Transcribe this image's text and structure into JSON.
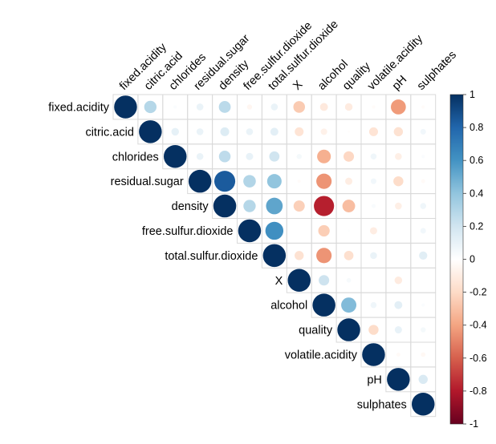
{
  "chart_data": {
    "type": "heatmap",
    "subtype": "correlation-upper-circles",
    "variables": [
      "fixed.acidity",
      "citric.acid",
      "chlorides",
      "residual.sugar",
      "density",
      "free.sulfur.dioxide",
      "total.sulfur.dioxide",
      "X",
      "alcohol",
      "quality",
      "volatile.acidity",
      "pH",
      "sulphates"
    ],
    "matrix": [
      [
        1,
        0.29,
        0.02,
        0.09,
        0.27,
        -0.05,
        0.09,
        -0.26,
        -0.12,
        -0.11,
        -0.02,
        -0.43,
        -0.02
      ],
      [
        null,
        1,
        0.11,
        0.09,
        0.15,
        0.09,
        0.12,
        -0.15,
        -0.08,
        -0.01,
        -0.15,
        -0.16,
        0.06
      ],
      [
        null,
        null,
        1,
        0.09,
        0.26,
        0.1,
        0.2,
        0.05,
        -0.36,
        -0.21,
        0.07,
        -0.09,
        0.02
      ],
      [
        null,
        null,
        null,
        1,
        0.84,
        0.3,
        0.4,
        -0.02,
        -0.45,
        -0.1,
        0.06,
        -0.19,
        -0.03
      ],
      [
        null,
        null,
        null,
        null,
        1,
        0.29,
        0.53,
        -0.24,
        -0.78,
        -0.31,
        0.03,
        -0.09,
        0.07
      ],
      [
        null,
        null,
        null,
        null,
        null,
        1,
        0.62,
        0.0,
        -0.25,
        0.01,
        -0.1,
        0.0,
        0.06
      ],
      [
        null,
        null,
        null,
        null,
        null,
        null,
        1,
        -0.16,
        -0.45,
        -0.17,
        0.09,
        0.0,
        0.13
      ],
      [
        null,
        null,
        null,
        null,
        null,
        null,
        null,
        1,
        0.21,
        0.04,
        0.0,
        -0.11,
        0.0
      ],
      [
        null,
        null,
        null,
        null,
        null,
        null,
        null,
        null,
        1,
        0.44,
        0.07,
        0.12,
        0.02
      ],
      [
        null,
        null,
        null,
        null,
        null,
        null,
        null,
        null,
        null,
        1,
        -0.19,
        0.1,
        0.05
      ],
      [
        null,
        null,
        null,
        null,
        null,
        null,
        null,
        null,
        null,
        null,
        1,
        -0.03,
        -0.04
      ],
      [
        null,
        null,
        null,
        null,
        null,
        null,
        null,
        null,
        null,
        null,
        null,
        1,
        0.16
      ],
      [
        null,
        null,
        null,
        null,
        null,
        null,
        null,
        null,
        null,
        null,
        null,
        null,
        1
      ]
    ],
    "colorbar": {
      "range": [
        -1,
        1
      ],
      "ticks": [
        "1",
        "0.8",
        "0.6",
        "0.4",
        "0.2",
        "0",
        "-0.2",
        "-0.4",
        "-0.6",
        "-0.8",
        "-1"
      ]
    },
    "colors": {
      "strong_positive": "#053061",
      "positive": "#2166AC",
      "mid_positive": "#4393C3",
      "light_positive": "#92C5DE",
      "pale_positive": "#D1E5F0",
      "neutral": "#F7F7F7",
      "pale_negative": "#FDDBC7",
      "light_negative": "#F4A582",
      "mid_negative": "#D6604D",
      "negative": "#B2182B",
      "strong_negative": "#67001F",
      "grid": "#d9d9d9"
    }
  }
}
